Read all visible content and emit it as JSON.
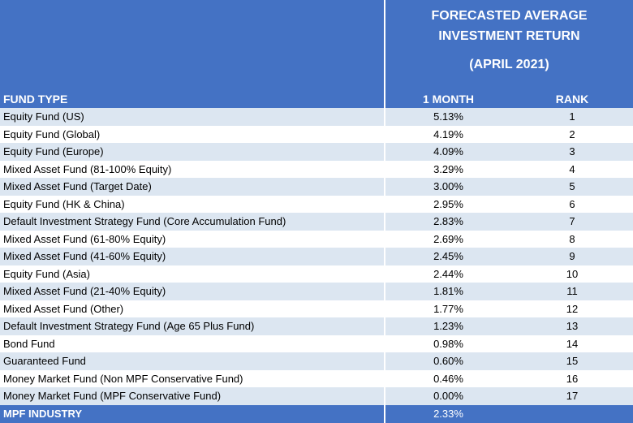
{
  "chart_data": {
    "type": "table",
    "title_lines": [
      "FORECASTED AVERAGE",
      "INVESTMENT RETURN",
      "(APRIL 2021)"
    ],
    "columns": [
      "FUND TYPE",
      "1 MONTH",
      "RANK"
    ],
    "rows": [
      {
        "fund": "Equity Fund (US)",
        "return": "5.13%",
        "rank": "1"
      },
      {
        "fund": "Equity Fund (Global)",
        "return": "4.19%",
        "rank": "2"
      },
      {
        "fund": "Equity Fund (Europe)",
        "return": "4.09%",
        "rank": "3"
      },
      {
        "fund": "Mixed Asset Fund (81-100% Equity)",
        "return": "3.29%",
        "rank": "4"
      },
      {
        "fund": "Mixed Asset Fund (Target Date)",
        "return": "3.00%",
        "rank": "5"
      },
      {
        "fund": "Equity Fund (HK & China)",
        "return": "2.95%",
        "rank": "6"
      },
      {
        "fund": "Default Investment Strategy Fund (Core Accumulation Fund)",
        "return": "2.83%",
        "rank": "7"
      },
      {
        "fund": "Mixed Asset Fund (61-80% Equity)",
        "return": "2.69%",
        "rank": "8"
      },
      {
        "fund": "Mixed Asset Fund (41-60% Equity)",
        "return": "2.45%",
        "rank": "9"
      },
      {
        "fund": "Equity Fund (Asia)",
        "return": "2.44%",
        "rank": "10"
      },
      {
        "fund": "Mixed Asset Fund (21-40% Equity)",
        "return": "1.81%",
        "rank": "11"
      },
      {
        "fund": "Mixed Asset Fund (Other)",
        "return": "1.77%",
        "rank": "12"
      },
      {
        "fund": "Default Investment Strategy Fund (Age 65 Plus Fund)",
        "return": "1.23%",
        "rank": "13"
      },
      {
        "fund": "Bond Fund",
        "return": "0.98%",
        "rank": "14"
      },
      {
        "fund": "Guaranteed Fund",
        "return": "0.60%",
        "rank": "15"
      },
      {
        "fund": "Money Market Fund (Non MPF Conservative Fund)",
        "return": "0.46%",
        "rank": "16"
      },
      {
        "fund": "Money Market Fund (MPF Conservative Fund)",
        "return": "0.00%",
        "rank": "17"
      }
    ],
    "footer": {
      "label": "MPF INDUSTRY",
      "return": "2.33%"
    },
    "colors": {
      "header": "#4472c4",
      "band": "#dce6f1",
      "white": "#ffffff"
    }
  }
}
